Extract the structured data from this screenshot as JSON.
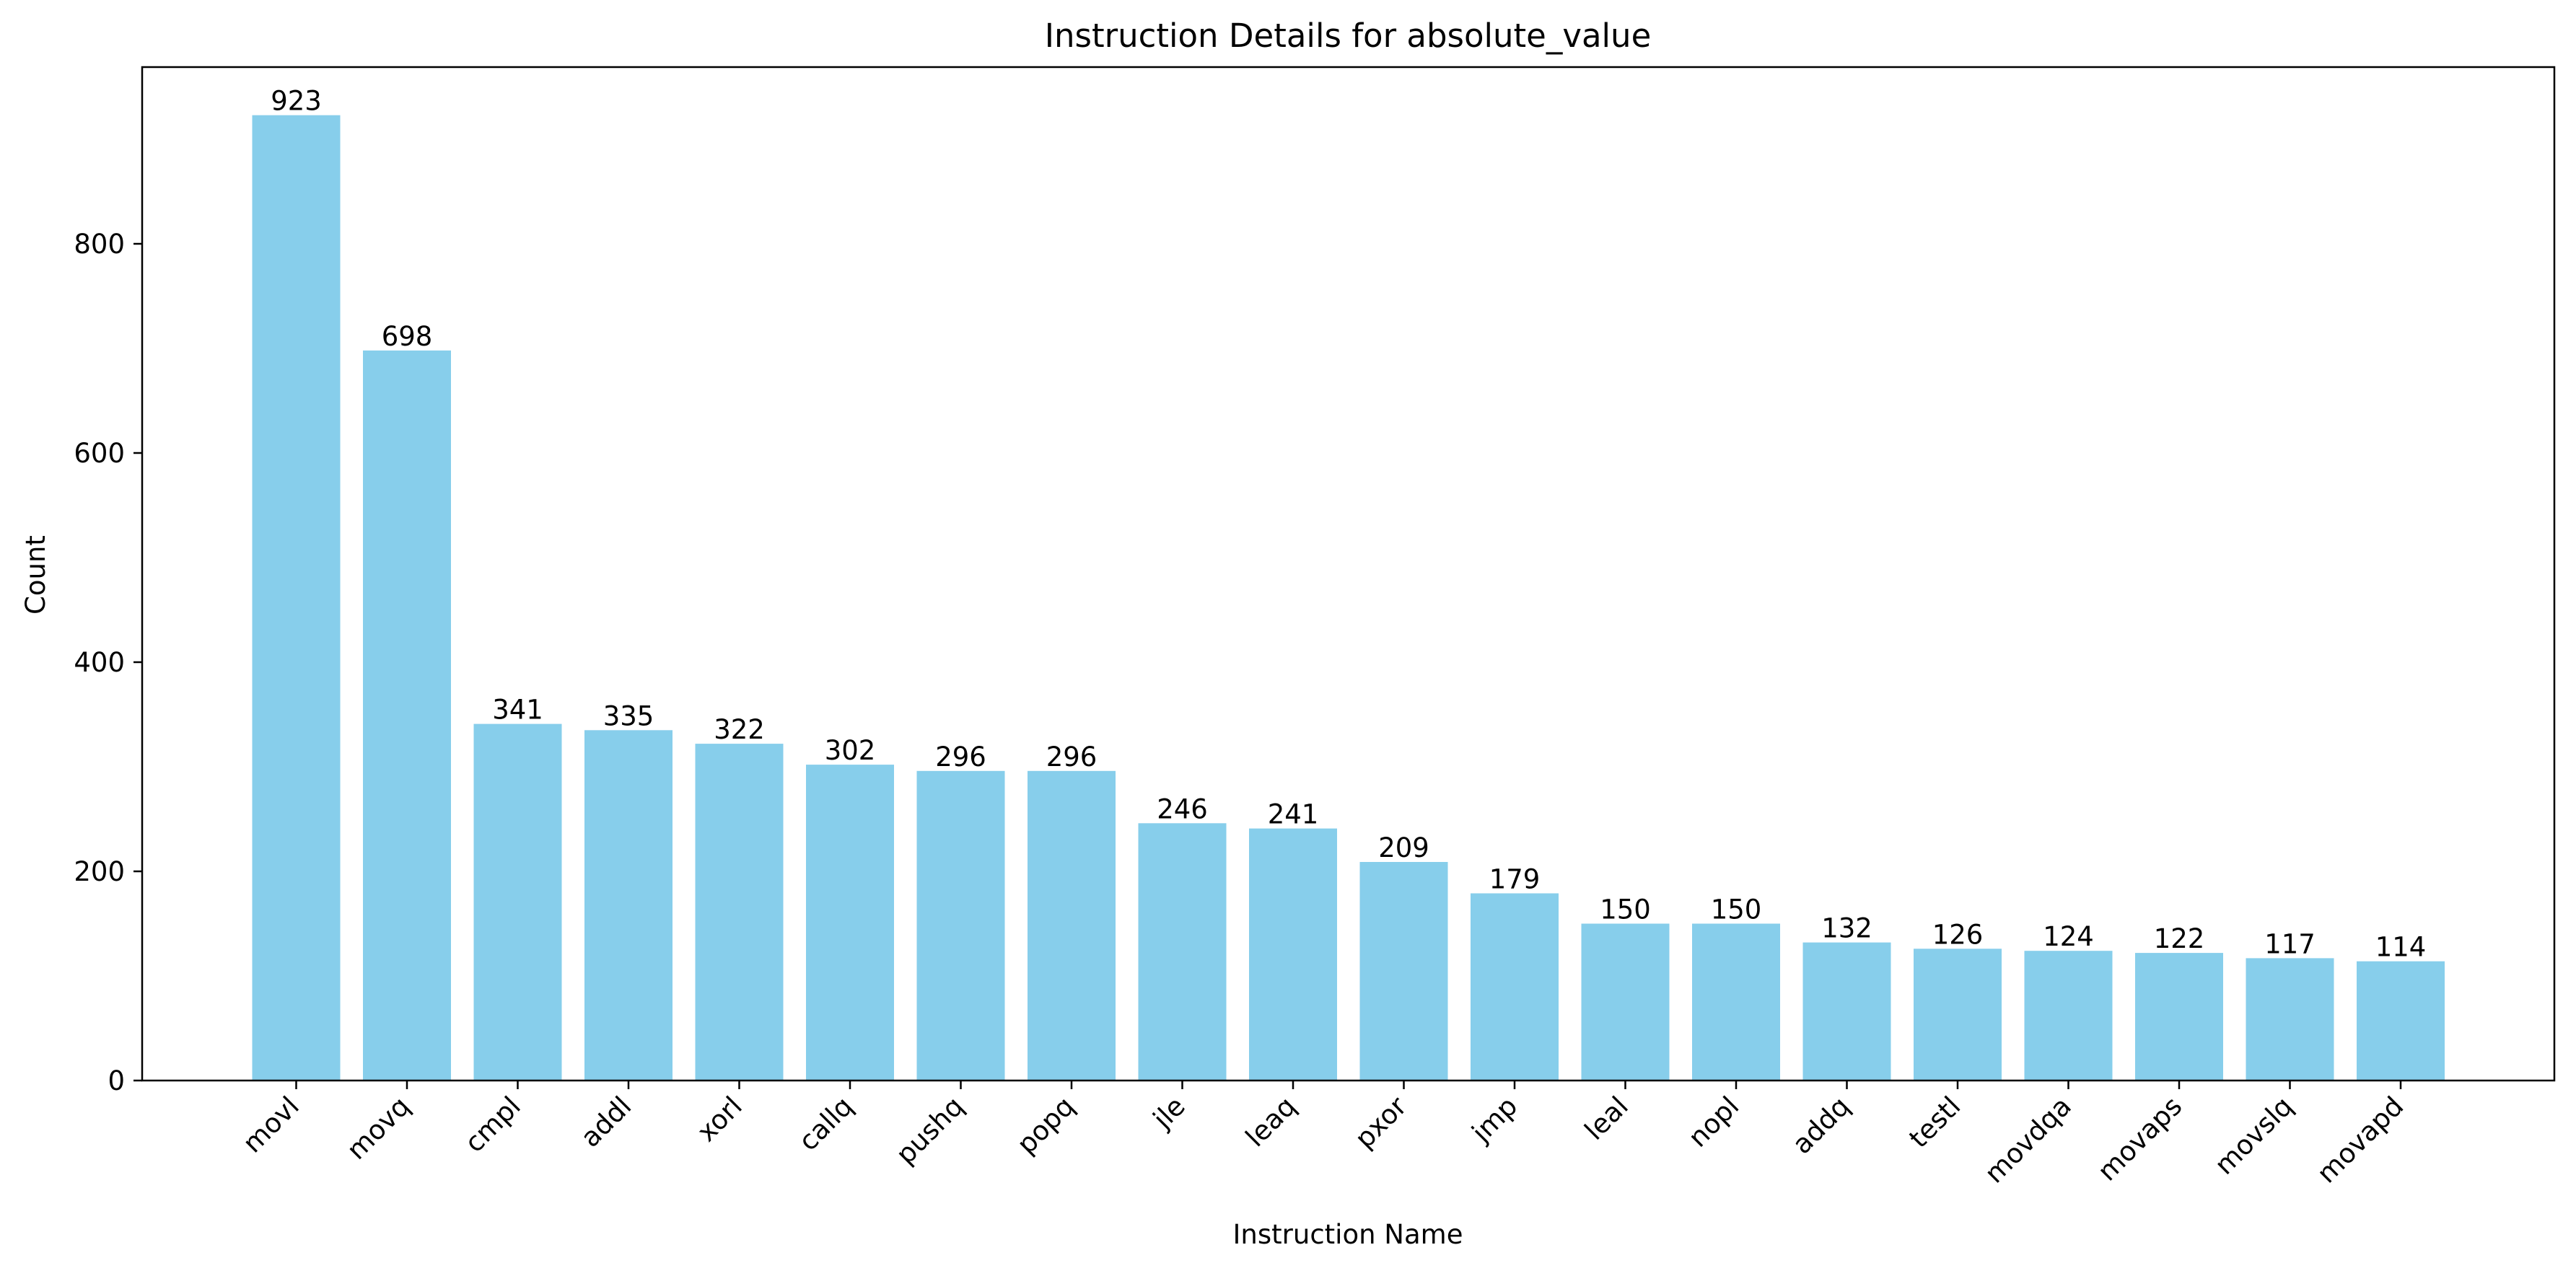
{
  "chart_data": {
    "type": "bar",
    "title": "Instruction Details for absolute_value",
    "xlabel": "Instruction Name",
    "ylabel": "Count",
    "categories": [
      "movl",
      "movq",
      "cmpl",
      "addl",
      "xorl",
      "callq",
      "pushq",
      "popq",
      "jle",
      "leaq",
      "pxor",
      "jmp",
      "leal",
      "nopl",
      "addq",
      "testl",
      "movdqa",
      "movaps",
      "movslq",
      "movapd"
    ],
    "values": [
      923,
      698,
      341,
      335,
      322,
      302,
      296,
      296,
      246,
      241,
      209,
      179,
      150,
      150,
      132,
      126,
      124,
      122,
      117,
      114
    ],
    "ylim": [
      0,
      969
    ],
    "yticks": [
      0,
      200,
      400,
      600,
      800
    ],
    "grid": false,
    "legend": "none",
    "bar_color": "#87ceeb",
    "tick_label_rotation": -45,
    "data_labels": true
  }
}
